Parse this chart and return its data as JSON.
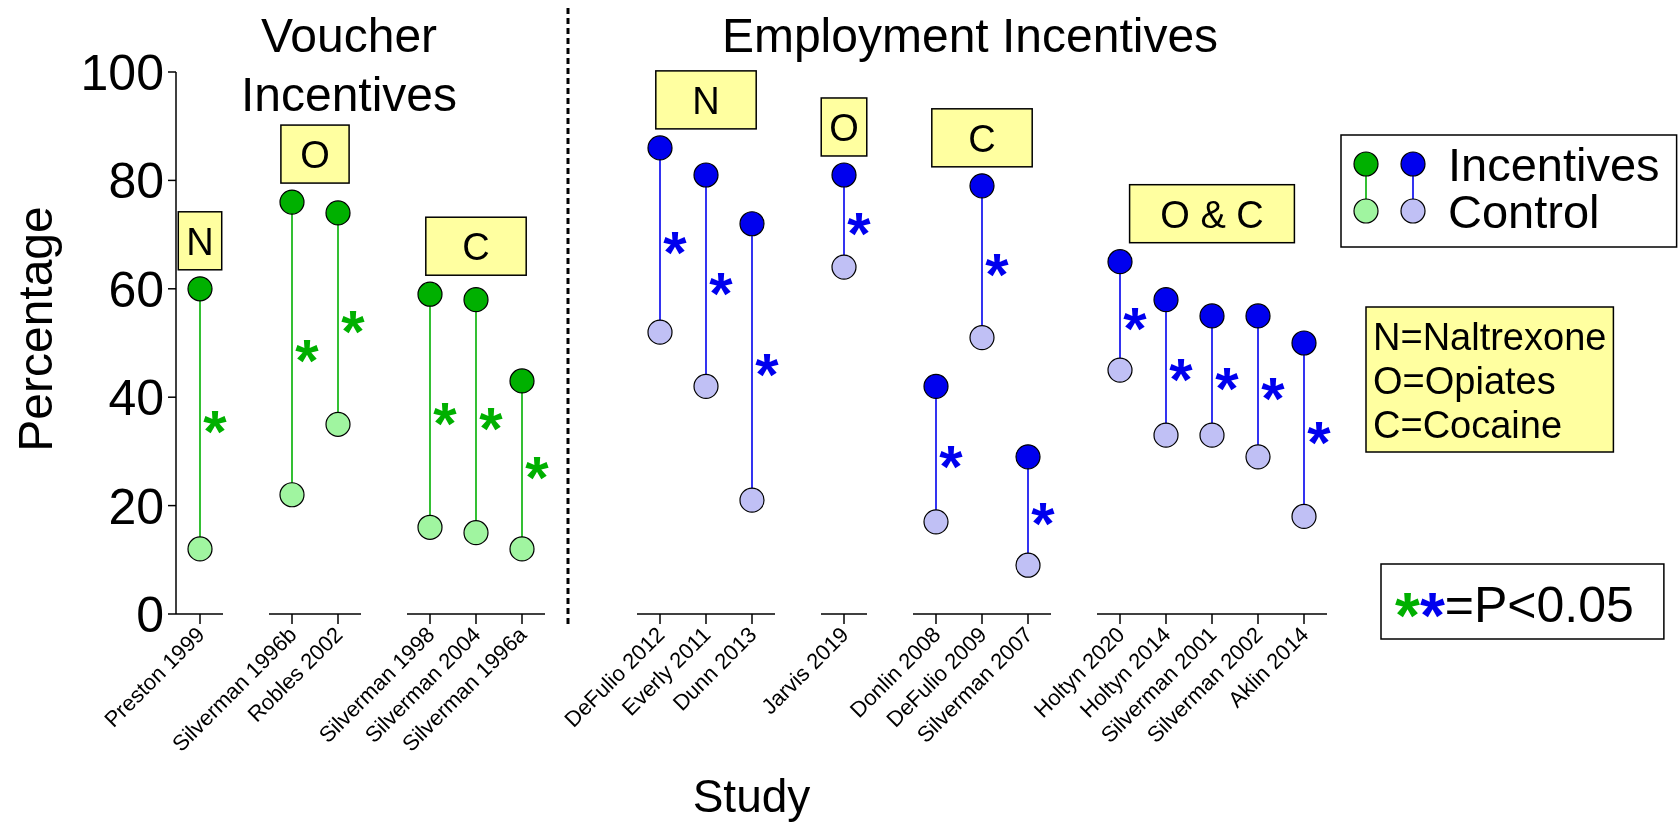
{
  "chart_data": [
    {
      "type": "scatter",
      "title": "Voucher Incentives",
      "ylabel": "Percentage",
      "marker": "circle",
      "categories": [
        "Preston 1999",
        null,
        "Silverman 1996b",
        "Robles 2002",
        null,
        "Silverman 1998",
        "Silverman 2004",
        "Silverman 1996a"
      ],
      "series": [
        {
          "color": "#00b000",
          "values": [
            60,
            null,
            76,
            74,
            null,
            59,
            58,
            43
          ]
        },
        {
          "color": "#a0f5a0",
          "values": [
            12,
            null,
            22,
            35,
            null,
            16,
            15,
            12
          ]
        }
      ],
      "ylim": [
        0,
        100
      ],
      "yticks": [
        0,
        20,
        40,
        60,
        80,
        100
      ],
      "annotations": [
        "N",
        "O",
        "C",
        "*",
        "*",
        "*",
        "*",
        "*",
        "*"
      ]
    },
    {
      "type": "scatter",
      "title": "Employment Incentives",
      "xlabel": "Study",
      "marker": "circle",
      "legend": "top right",
      "tick_labels": "x",
      "categories": [
        "DeFulio 2012",
        "Everly 2011",
        "Dunn 2013",
        null,
        "Jarvis 2019",
        null,
        "Donlin 2008",
        "DeFulio 2009",
        "Silverman 2007",
        null,
        "Holtyn 2020",
        "Holtyn 2014",
        "Silverman 2001",
        "Silverman 2002",
        "Aklin 2014"
      ],
      "series": [
        {
          "name": "Incentives",
          "color": "#0000ee",
          "values": [
            86,
            81,
            72,
            null,
            81,
            null,
            42,
            79,
            29,
            null,
            65,
            58,
            55,
            55,
            50
          ]
        },
        {
          "name": "Control",
          "color": "#c0c0f5",
          "values": [
            52,
            42,
            21,
            null,
            64,
            null,
            17,
            51,
            9,
            null,
            45,
            33,
            33,
            29,
            18
          ]
        }
      ],
      "ylim": [
        0,
        100
      ],
      "annotations": [
        "N",
        "O",
        "C",
        "O & C",
        "*",
        "*",
        "*",
        "*",
        "*",
        "*",
        "*",
        "*",
        "*",
        "*",
        "*",
        "*",
        "N=Naltrexone\nO=Opiates\nC=Cocaine",
        "**=P<0.05"
      ]
    }
  ]
}
